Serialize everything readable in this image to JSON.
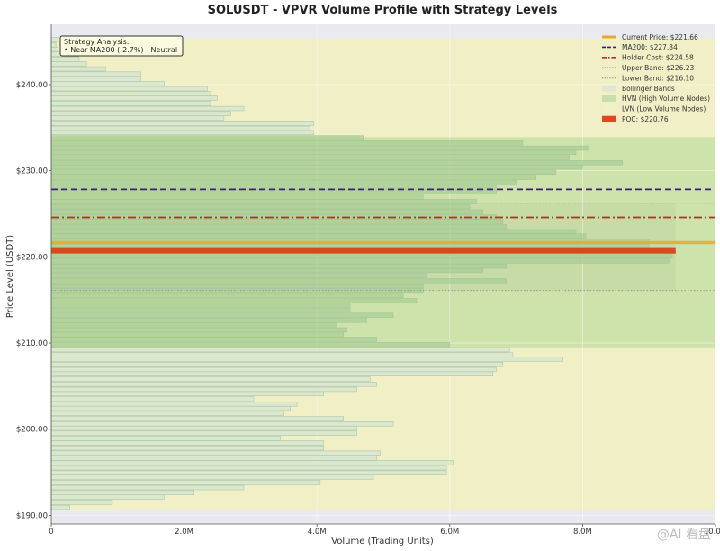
{
  "chart_data": {
    "type": "bar",
    "orientation": "horizontal",
    "title": "SOLUSDT - VPVR Volume Profile with Strategy Levels",
    "xlabel": "Volume (Trading Units)",
    "ylabel": "Price Level (USDT)",
    "xlim": [
      0,
      10000000
    ],
    "ylim": [
      189,
      247
    ],
    "x_ticks": [
      {
        "value": 0,
        "label": "0"
      },
      {
        "value": 2000000,
        "label": "2.0M"
      },
      {
        "value": 4000000,
        "label": "4.0M"
      },
      {
        "value": 6000000,
        "label": "6.0M"
      },
      {
        "value": 8000000,
        "label": "8.0M"
      },
      {
        "value": 10000000,
        "label": "10.0M"
      }
    ],
    "y_ticks": [
      {
        "value": 190,
        "label": "$190.00"
      },
      {
        "value": 200,
        "label": "$200.00"
      },
      {
        "value": 210,
        "label": "$210.00"
      },
      {
        "value": 220,
        "label": "$220.00"
      },
      {
        "value": 230,
        "label": "$230.00"
      },
      {
        "value": 240,
        "label": "$240.00"
      }
    ],
    "bin_height": 0.56,
    "bars": [
      {
        "price": 190.9,
        "volume": 0.28
      },
      {
        "price": 191.5,
        "volume": 0.92
      },
      {
        "price": 192.1,
        "volume": 1.7
      },
      {
        "price": 192.6,
        "volume": 2.15
      },
      {
        "price": 193.2,
        "volume": 2.9
      },
      {
        "price": 193.8,
        "volume": 4.05
      },
      {
        "price": 194.4,
        "volume": 4.85
      },
      {
        "price": 194.9,
        "volume": 5.95
      },
      {
        "price": 195.5,
        "volume": 5.95
      },
      {
        "price": 196.1,
        "volume": 6.05
      },
      {
        "price": 196.6,
        "volume": 4.9
      },
      {
        "price": 197.2,
        "volume": 4.95
      },
      {
        "price": 197.8,
        "volume": 4.1
      },
      {
        "price": 198.4,
        "volume": 4.1
      },
      {
        "price": 198.9,
        "volume": 3.45
      },
      {
        "price": 199.5,
        "volume": 4.6
      },
      {
        "price": 200.1,
        "volume": 4.6
      },
      {
        "price": 200.6,
        "volume": 5.15
      },
      {
        "price": 201.2,
        "volume": 4.4
      },
      {
        "price": 201.8,
        "volume": 3.5
      },
      {
        "price": 202.4,
        "volume": 3.6
      },
      {
        "price": 202.9,
        "volume": 3.7
      },
      {
        "price": 203.5,
        "volume": 3.05
      },
      {
        "price": 204.1,
        "volume": 4.1
      },
      {
        "price": 204.6,
        "volume": 4.6
      },
      {
        "price": 205.2,
        "volume": 4.9
      },
      {
        "price": 205.8,
        "volume": 4.8
      },
      {
        "price": 206.4,
        "volume": 6.65
      },
      {
        "price": 206.9,
        "volume": 6.7
      },
      {
        "price": 207.5,
        "volume": 6.8
      },
      {
        "price": 208.1,
        "volume": 7.7
      },
      {
        "price": 208.6,
        "volume": 6.95
      },
      {
        "price": 209.2,
        "volume": 6.9
      },
      {
        "price": 209.8,
        "volume": 6.0
      },
      {
        "price": 210.4,
        "volume": 4.9
      },
      {
        "price": 210.9,
        "volume": 4.4
      },
      {
        "price": 211.5,
        "volume": 4.45
      },
      {
        "price": 212.1,
        "volume": 4.3
      },
      {
        "price": 212.6,
        "volume": 4.75
      },
      {
        "price": 213.2,
        "volume": 5.15
      },
      {
        "price": 213.8,
        "volume": 4.5
      },
      {
        "price": 214.4,
        "volume": 4.5
      },
      {
        "price": 214.9,
        "volume": 5.5
      },
      {
        "price": 215.5,
        "volume": 5.3
      },
      {
        "price": 216.1,
        "volume": 5.6
      },
      {
        "price": 216.6,
        "volume": 5.6
      },
      {
        "price": 217.2,
        "volume": 6.85
      },
      {
        "price": 217.8,
        "volume": 5.65
      },
      {
        "price": 218.4,
        "volume": 6.5
      },
      {
        "price": 218.9,
        "volume": 6.85
      },
      {
        "price": 219.5,
        "volume": 9.3
      },
      {
        "price": 220.1,
        "volume": 9.35
      },
      {
        "price": 220.6,
        "volume": 9.4
      },
      {
        "price": 221.2,
        "volume": 9.0
      },
      {
        "price": 221.8,
        "volume": 9.0
      },
      {
        "price": 222.4,
        "volume": 8.05
      },
      {
        "price": 222.9,
        "volume": 7.9
      },
      {
        "price": 223.5,
        "volume": 6.85
      },
      {
        "price": 224.1,
        "volume": 6.8
      },
      {
        "price": 224.6,
        "volume": 6.7
      },
      {
        "price": 225.2,
        "volume": 6.5
      },
      {
        "price": 225.8,
        "volume": 6.3
      },
      {
        "price": 226.4,
        "volume": 6.4
      },
      {
        "price": 226.9,
        "volume": 5.6
      },
      {
        "price": 227.5,
        "volume": 6.7
      },
      {
        "price": 228.1,
        "volume": 6.7
      },
      {
        "price": 228.6,
        "volume": 7.0
      },
      {
        "price": 229.2,
        "volume": 7.3
      },
      {
        "price": 229.8,
        "volume": 7.6
      },
      {
        "price": 230.4,
        "volume": 8.0
      },
      {
        "price": 230.9,
        "volume": 8.6
      },
      {
        "price": 231.5,
        "volume": 7.8
      },
      {
        "price": 232.1,
        "volume": 7.9
      },
      {
        "price": 232.6,
        "volume": 8.1
      },
      {
        "price": 233.2,
        "volume": 7.1
      },
      {
        "price": 233.8,
        "volume": 4.7
      },
      {
        "price": 234.4,
        "volume": 3.95
      },
      {
        "price": 234.9,
        "volume": 3.9
      },
      {
        "price": 235.5,
        "volume": 3.95
      },
      {
        "price": 236.1,
        "volume": 2.6
      },
      {
        "price": 236.6,
        "volume": 2.7
      },
      {
        "price": 237.2,
        "volume": 2.9
      },
      {
        "price": 237.8,
        "volume": 2.4
      },
      {
        "price": 238.4,
        "volume": 2.5
      },
      {
        "price": 238.9,
        "volume": 2.4
      },
      {
        "price": 239.5,
        "volume": 2.35
      },
      {
        "price": 240.1,
        "volume": 1.7
      },
      {
        "price": 240.6,
        "volume": 1.35
      },
      {
        "price": 241.2,
        "volume": 1.35
      },
      {
        "price": 241.8,
        "volume": 0.82
      },
      {
        "price": 242.4,
        "volume": 0.53
      },
      {
        "price": 242.9,
        "volume": 0.42
      },
      {
        "price": 243.5,
        "volume": 0.42
      },
      {
        "price": 244.1,
        "volume": 0.1
      },
      {
        "price": 244.6,
        "volume": 0.07
      },
      {
        "price": 245.2,
        "volume": 0.1
      }
    ],
    "volume_unit": 1000000,
    "price_range_band": [
      190.6,
      245.4
    ],
    "hvn_band": [
      209.5,
      233.9
    ],
    "bollinger_band": [
      216.1,
      226.23
    ],
    "levels": [
      {
        "name": "Current Price: $221.66",
        "value": 221.66,
        "color": "#e6a82e",
        "style": "solid",
        "width": 3.5
      },
      {
        "name": "MA200: $227.84",
        "value": 227.84,
        "color": "#3a1f7a",
        "style": "dashed",
        "width": 1.8
      },
      {
        "name": "Holder Cost: $224.58",
        "value": 224.58,
        "color": "#b0311e",
        "style": "dashdot",
        "width": 1.8
      },
      {
        "name": "Upper Band: $226.23",
        "value": 226.23,
        "color": "#999999",
        "style": "dotted",
        "width": 1
      },
      {
        "name": "Lower Band: $216.10",
        "value": 216.1,
        "color": "#999999",
        "style": "dotted",
        "width": 1
      }
    ],
    "poc": {
      "name": "POC: $220.76",
      "value": 220.76,
      "color": "#d94a1c"
    },
    "legend": [
      {
        "label": "Current Price: $221.66",
        "kind": "line",
        "color": "#e6a82e",
        "style": "solid"
      },
      {
        "label": "MA200: $227.84",
        "kind": "line",
        "color": "#3a1f7a",
        "style": "dashed"
      },
      {
        "label": "Holder Cost: $224.58",
        "kind": "line",
        "color": "#b0311e",
        "style": "dashdot"
      },
      {
        "label": "Upper Band: $226.23",
        "kind": "line",
        "color": "#999999",
        "style": "dotted"
      },
      {
        "label": "Lower Band: $216.10",
        "kind": "line",
        "color": "#999999",
        "style": "dotted"
      },
      {
        "label": "Bollinger Bands",
        "kind": "patch",
        "color": "#dfe6d3"
      },
      {
        "label": "HVN (High Volume Nodes)",
        "kind": "patch",
        "color": "#c9dfa9"
      },
      {
        "label": "LVN (Low Volume Nodes)",
        "kind": "patch",
        "color": "#f3f0c8"
      },
      {
        "label": "POC: $220.76",
        "kind": "patch",
        "color": "#d94a1c"
      }
    ],
    "legend_position": "top-right",
    "annotation": {
      "title": "Strategy Analysis:",
      "line": "• Near MA200 (-2.7%) - Neutral",
      "position": "top-left"
    },
    "grid": true
  },
  "watermark": "@AI 看盘",
  "colors": {
    "background": "#e9e9f0",
    "lvn_fill": "#f1efc6",
    "hvn_fill": "#c6dea4",
    "bollinger_fill": "#b9cf9f",
    "bar_fill": "#d3e5d0",
    "bar_hvn_fill": "#a8cf92",
    "bar_stroke": "#9fbfa0"
  }
}
